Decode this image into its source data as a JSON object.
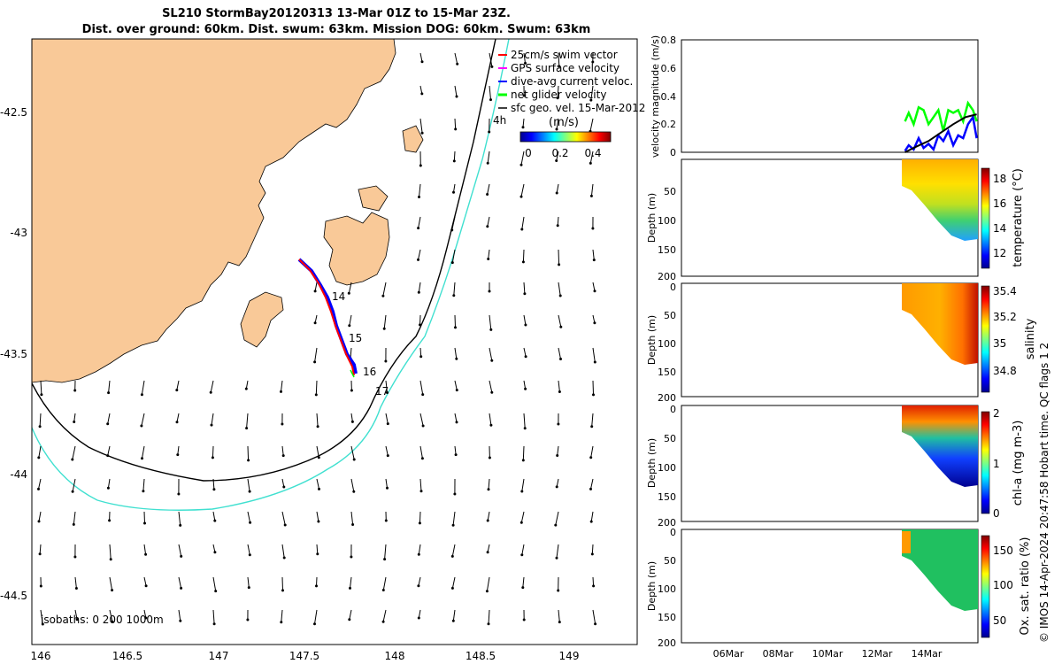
{
  "title": "SL210 StormBay20120313 13-Mar 01Z to 15-Mar 23Z.",
  "subtitle": "Dist. over ground: 60km. Dist. swum: 63km. Mission DOG: 60km. Swum: 63km",
  "credit": "© IMOS 14-Apr-2024 20:47:58 Hobart time. QC flags 1  2",
  "map": {
    "x_ticks": [
      "146",
      "146.5",
      "147",
      "147.5",
      "148",
      "148.5",
      "149"
    ],
    "y_ticks": [
      "-42.5",
      "-43",
      "-43.5",
      "-44",
      "-44.5"
    ],
    "isobaths_label": "isobaths: 0   200  1000m",
    "legend": [
      {
        "label": "25cm/s swim vector",
        "color": "#ff0000"
      },
      {
        "label": "GPS surface velocity",
        "color": "#ff00ff"
      },
      {
        "label": "dive-avg current veloc.",
        "color": "#0000ff"
      },
      {
        "label": "net glider velocity",
        "color": "#00ff00"
      },
      {
        "label": "sfc geo. vel. 15-Mar-2012",
        "color": "#000000"
      }
    ],
    "scale_label": "4h",
    "colorbar_title": "(m/s)",
    "colorbar_ticks": [
      "0",
      "0.2",
      "0.4"
    ],
    "day_labels": [
      "14",
      "15",
      "16",
      "17"
    ],
    "land_color": "#f9c998",
    "isobath_200_color": "#000000",
    "isobath_1000_color": "#40e0d0"
  },
  "chart_data": [
    {
      "type": "line",
      "ylabel": "velocity magnitude (m/s)",
      "ylim": [
        0,
        0.8
      ],
      "y_ticks": [
        "0",
        "0.2",
        "0.4",
        "0.6",
        "0.8"
      ],
      "x_range": [
        "04-Mar",
        "16-Mar"
      ],
      "series": [
        {
          "color": "#00ff00",
          "x": [
            13.05,
            13.2,
            13.4,
            13.6,
            13.8,
            14.0,
            14.2,
            14.4,
            14.6,
            14.8,
            15.0,
            15.2,
            15.4,
            15.6,
            15.8,
            15.95
          ],
          "y": [
            0.22,
            0.28,
            0.2,
            0.32,
            0.3,
            0.2,
            0.25,
            0.3,
            0.15,
            0.3,
            0.28,
            0.3,
            0.22,
            0.35,
            0.3,
            0.22
          ]
        },
        {
          "color": "#0000ff",
          "x": [
            13.05,
            13.2,
            13.4,
            13.6,
            13.8,
            14.0,
            14.2,
            14.4,
            14.6,
            14.8,
            15.0,
            15.2,
            15.4,
            15.6,
            15.8,
            15.95
          ],
          "y": [
            0.01,
            0.05,
            0.02,
            0.1,
            0.03,
            0.06,
            0.02,
            0.12,
            0.08,
            0.15,
            0.05,
            0.12,
            0.1,
            0.2,
            0.25,
            0.1
          ]
        },
        {
          "color": "#000000",
          "x": [
            13.05,
            13.5,
            14.0,
            14.5,
            15.0,
            15.5,
            15.95
          ],
          "y": [
            0.0,
            0.04,
            0.08,
            0.14,
            0.2,
            0.25,
            0.27
          ]
        }
      ]
    },
    {
      "type": "heatmap",
      "ylabel": "Depth (m)",
      "colorbar_label": "temperature (°C)",
      "y_ticks": [
        "50",
        "100",
        "150",
        "200"
      ],
      "colorbar_ticks": [
        "12",
        "14",
        "16",
        "18"
      ],
      "clim": [
        11,
        19
      ]
    },
    {
      "type": "heatmap",
      "ylabel": "Depth (m)",
      "colorbar_label": "salinity",
      "y_ticks": [
        "0",
        "50",
        "100",
        "150",
        "200"
      ],
      "colorbar_ticks": [
        "34.8",
        "35",
        "35.2",
        "35.4"
      ],
      "clim": [
        34.7,
        35.4
      ]
    },
    {
      "type": "heatmap",
      "ylabel": "Depth (m)",
      "colorbar_label": "chl-a (mg m-3)",
      "y_ticks": [
        "0",
        "50",
        "100",
        "150",
        "200"
      ],
      "colorbar_ticks": [
        "0",
        "1",
        "2"
      ],
      "clim": [
        0,
        2
      ]
    },
    {
      "type": "heatmap",
      "ylabel": "Depth (m)",
      "colorbar_label": "Ox. sat. ratio (%)",
      "y_ticks": [
        "0",
        "50",
        "100",
        "150",
        "200"
      ],
      "colorbar_ticks": [
        "50",
        "100",
        "150"
      ],
      "clim": [
        30,
        170
      ],
      "x_ticks": [
        "06Mar",
        "08Mar",
        "10Mar",
        "12Mar",
        "14Mar"
      ]
    }
  ]
}
